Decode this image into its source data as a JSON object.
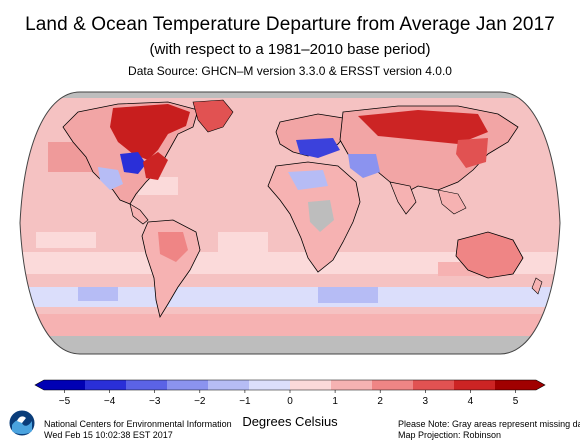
{
  "header": {
    "title": "Land & Ocean Temperature Departure from Average Jan 2017",
    "subtitle": "(with respect to a 1981–2010 base period)",
    "source": "Data Source: GHCN–M version 3.3.0 & ERSST version 4.0.0"
  },
  "map": {
    "projection_note": "Map Projection: Robinson",
    "missing_data_color": "#bdbdbd",
    "ocean_base_color": "#f7c3c3",
    "coastline_color": "#000000",
    "anomaly_regions": [
      {
        "region": "Northeastern Canada / Greenland",
        "anomaly": 4.5
      },
      {
        "region": "Northwestern North America",
        "anomaly": -4.0
      },
      {
        "region": "Eastern United States",
        "anomaly": 3.5
      },
      {
        "region": "Southern Europe / Mediterranean",
        "anomaly": -3.5
      },
      {
        "region": "Siberia",
        "anomaly": 4.0
      },
      {
        "region": "Middle East",
        "anomaly": -1.5
      },
      {
        "region": "Australia",
        "anomaly": 2.5
      },
      {
        "region": "Southern Ocean",
        "anomaly": -0.5
      }
    ]
  },
  "colorbar": {
    "units": "Degrees Celsius",
    "ticks": [
      "−5",
      "−4",
      "−3",
      "−2",
      "−1",
      "0",
      "1",
      "2",
      "3",
      "4",
      "5"
    ],
    "colors": [
      "#0000b4",
      "#2a2fd8",
      "#5b63e6",
      "#8b93ef",
      "#b6bcf5",
      "#dbdefb",
      "#fbdada",
      "#f6b2b2",
      "#ef8585",
      "#e15252",
      "#cc2424",
      "#a00000"
    ]
  },
  "footer": {
    "left_line1": "National Centers for Environmental Information",
    "left_line2": "Wed Feb 15 10:02:38 EST 2017",
    "right_line1": "Please Note: Gray areas represent missing data",
    "right_line2": "Map Projection: Robinson"
  },
  "logo": {
    "name": "NOAA",
    "color_dark": "#0a3d7a",
    "color_light": "#4aa3df"
  }
}
